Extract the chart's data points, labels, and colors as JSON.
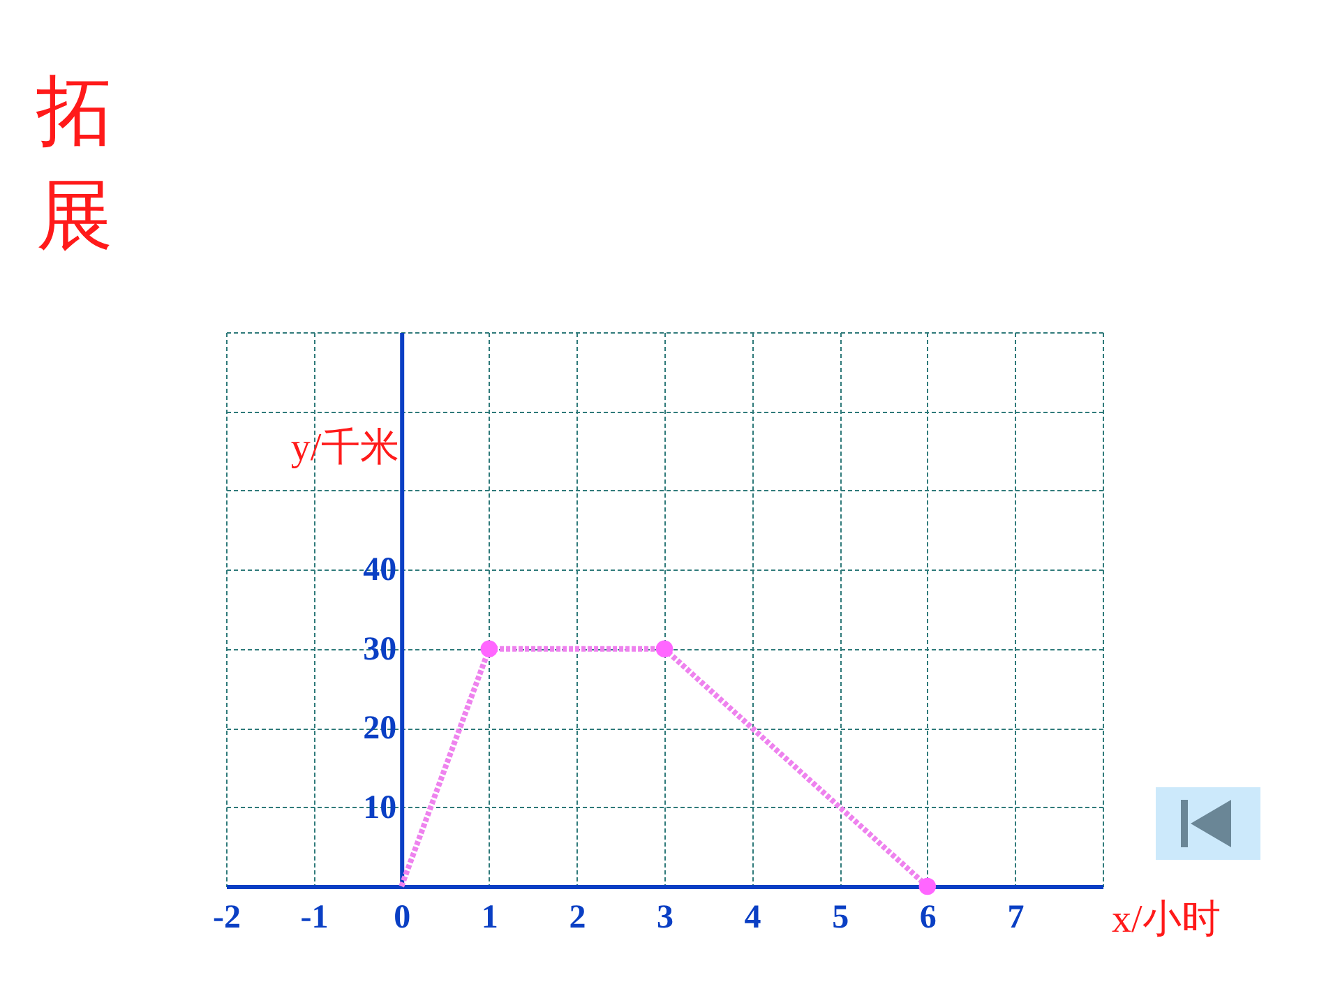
{
  "chart_data": {
    "type": "line",
    "title": "拓展",
    "xlabel": "x/小时",
    "ylabel": "y/千米",
    "series": [
      {
        "x": [
          0,
          1,
          3,
          6
        ],
        "values": [
          0,
          30,
          30,
          0
        ],
        "color": "#ee82ee",
        "line_style": "dotted"
      },
      {
        "type": "scatter",
        "x": [
          1,
          3,
          6
        ],
        "values": [
          30,
          30,
          0
        ],
        "color": "#ff66ff",
        "marker": "circle"
      }
    ],
    "xlim": [
      -2,
      8
    ],
    "ylim": [
      0,
      70
    ],
    "xticks": [
      -2,
      -1,
      0,
      1,
      2,
      3,
      4,
      5,
      6,
      7,
      {
        "value": 8,
        "label": null
      }
    ],
    "yticks": [
      {
        "value": 0,
        "label": null
      },
      10,
      20,
      30,
      40,
      {
        "value": 50,
        "label": null
      },
      {
        "value": 60,
        "label": null
      },
      {
        "value": 70,
        "label": null
      }
    ],
    "grid": true
  }
}
